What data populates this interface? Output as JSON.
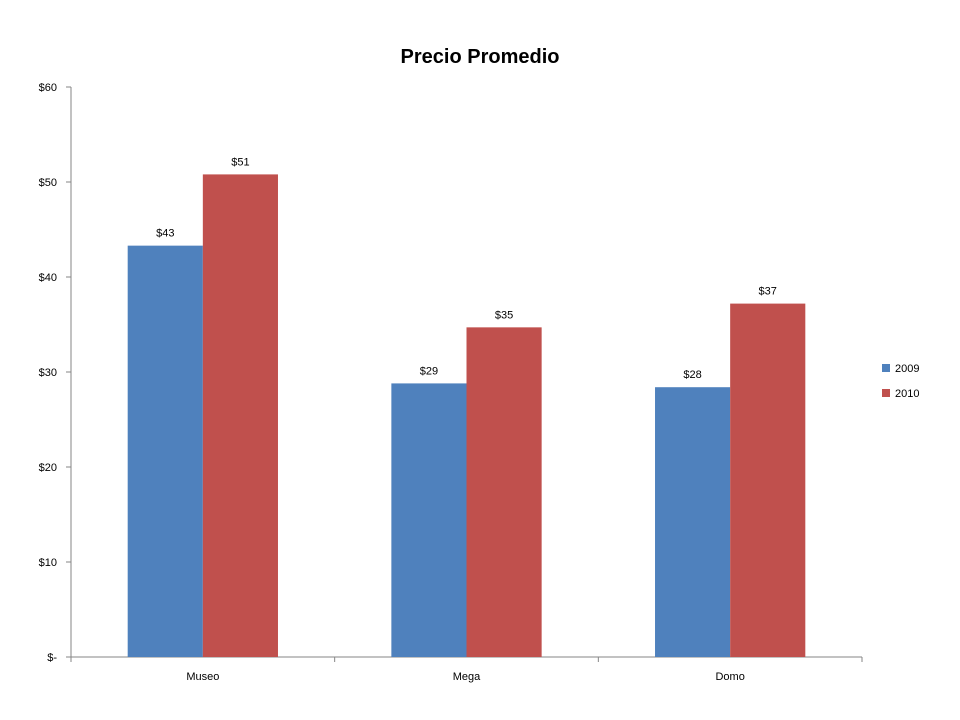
{
  "chart_data": {
    "type": "bar",
    "title": "Precio Promedio",
    "xlabel": "",
    "ylabel": "",
    "categories": [
      "Museo",
      "Mega",
      "Domo"
    ],
    "series": [
      {
        "name": "2009",
        "color": "#4F81BD",
        "values": [
          43.3,
          28.8,
          28.4
        ],
        "labels": [
          "$43",
          "$29",
          "$28"
        ]
      },
      {
        "name": "2010",
        "color": "#C0504D",
        "values": [
          50.8,
          34.7,
          37.2
        ],
        "labels": [
          "$51",
          "$35",
          "$37"
        ]
      }
    ],
    "ylim": [
      0,
      60
    ],
    "yticks": [
      0,
      10,
      20,
      30,
      40,
      50,
      60
    ],
    "ytick_labels": [
      "$-",
      "$10",
      "$20",
      "$30",
      "$40",
      "$50",
      "$60"
    ],
    "grid": false,
    "legend_position": "right"
  }
}
